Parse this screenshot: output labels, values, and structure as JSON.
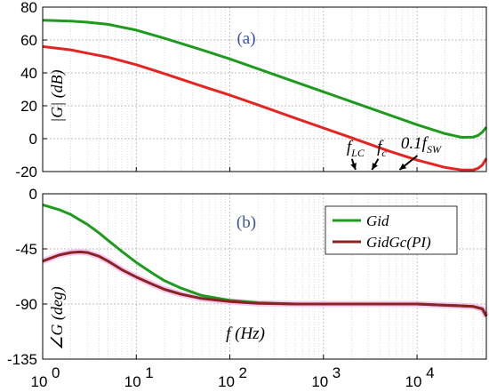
{
  "chart_data": [
    {
      "id": "a",
      "type": "line",
      "panel_label": "(a)",
      "ylabel": "|G| (dB)",
      "xscale": "log",
      "xlim": [
        1,
        55000
      ],
      "ylim": [
        -20,
        80
      ],
      "xticks": [
        {
          "v": 1,
          "label": "10"
        },
        {
          "v": 10,
          "label": "10"
        },
        {
          "v": 100,
          "label": "10"
        },
        {
          "v": 1000,
          "label": "10"
        },
        {
          "v": 10000,
          "label": "10"
        }
      ],
      "yticks": [
        {
          "v": -20,
          "label": "-20"
        },
        {
          "v": 0,
          "label": "0"
        },
        {
          "v": 20,
          "label": "20"
        },
        {
          "v": 40,
          "label": "40"
        },
        {
          "v": 60,
          "label": "60"
        },
        {
          "v": 80,
          "label": "80"
        }
      ],
      "grid": true,
      "series": [
        {
          "color": "#1e9a1e",
          "x": [
            1,
            2,
            3,
            5,
            10,
            20,
            50,
            100,
            200,
            500,
            1000,
            2000,
            5000,
            10000,
            20000,
            30000,
            40000,
            45000,
            50000,
            55000
          ],
          "y": [
            72,
            71.5,
            70.8,
            69.5,
            66,
            61,
            54,
            48.5,
            42.5,
            34.5,
            28.5,
            22.5,
            14.5,
            8.5,
            3,
            0.8,
            1,
            2,
            4,
            7
          ]
        },
        {
          "color": "#e52421",
          "x": [
            1,
            2,
            3,
            5,
            10,
            20,
            50,
            100,
            200,
            500,
            1000,
            2000,
            5000,
            10000,
            20000,
            30000,
            40000,
            45000,
            50000,
            55000
          ],
          "y": [
            56,
            54,
            52,
            49.5,
            45,
            39.5,
            32,
            26.5,
            20.5,
            12.5,
            6.5,
            0.5,
            -7.5,
            -13,
            -17.5,
            -19,
            -19,
            -18,
            -16,
            -12
          ]
        }
      ],
      "annotations": [
        {
          "base": "f",
          "sub": "LC",
          "text_x": 2200,
          "text_y": -8,
          "arrow_to": [
            2200,
            -20
          ]
        },
        {
          "base": "f",
          "sub": "c",
          "text_x": 4200,
          "text_y": -8,
          "arrow_to": [
            3300,
            -20
          ]
        },
        {
          "base": "0.1f",
          "sub": "SW",
          "text_x": 11000,
          "text_y": -6,
          "arrow_to": [
            6500,
            -20
          ]
        }
      ]
    },
    {
      "id": "b",
      "type": "line",
      "panel_label": "(b)",
      "ylabel": "∠G (deg)",
      "xlabel": "f (Hz)",
      "xscale": "log",
      "xlim": [
        1,
        55000
      ],
      "ylim": [
        -135,
        0
      ],
      "xticks": [
        {
          "v": 1,
          "label": "10",
          "exp": "0"
        },
        {
          "v": 10,
          "label": "10",
          "exp": "1"
        },
        {
          "v": 100,
          "label": "10",
          "exp": "2"
        },
        {
          "v": 1000,
          "label": "10",
          "exp": "3"
        },
        {
          "v": 10000,
          "label": "10",
          "exp": "4"
        }
      ],
      "yticks": [
        {
          "v": -135,
          "label": "-135"
        },
        {
          "v": -90,
          "label": "-90"
        },
        {
          "v": -45,
          "label": "-45"
        },
        {
          "v": 0,
          "label": "0"
        }
      ],
      "grid": true,
      "legend_position": "top-right",
      "series": [
        {
          "name": "Gid",
          "color": "#1e9a1e",
          "x": [
            1,
            1.5,
            2,
            3,
            4,
            5,
            7,
            10,
            15,
            20,
            30,
            50,
            100,
            200,
            500,
            1000,
            2000,
            5000,
            10000,
            20000,
            30000,
            40000,
            50000,
            55000
          ],
          "y": [
            -9,
            -13,
            -17,
            -25,
            -32,
            -38,
            -47,
            -56,
            -65,
            -71,
            -77,
            -83,
            -87,
            -89,
            -90,
            -90,
            -90,
            -90,
            -90,
            -91,
            -91.5,
            -92,
            -94,
            -100
          ]
        },
        {
          "name": "GidGc(PI)",
          "color": "#8b2323",
          "x": [
            1,
            1.5,
            2,
            2.5,
            3,
            4,
            5,
            7,
            10,
            15,
            20,
            30,
            50,
            100,
            200,
            500,
            1000,
            2000,
            5000,
            10000,
            20000,
            30000,
            40000,
            50000,
            55000
          ],
          "y": [
            -55,
            -50,
            -48,
            -47.5,
            -48,
            -51,
            -55,
            -62,
            -68,
            -74,
            -78,
            -82,
            -85.5,
            -88,
            -89.5,
            -90,
            -90,
            -90,
            -90,
            -90,
            -91,
            -91.5,
            -92,
            -94,
            -100
          ]
        }
      ]
    }
  ]
}
